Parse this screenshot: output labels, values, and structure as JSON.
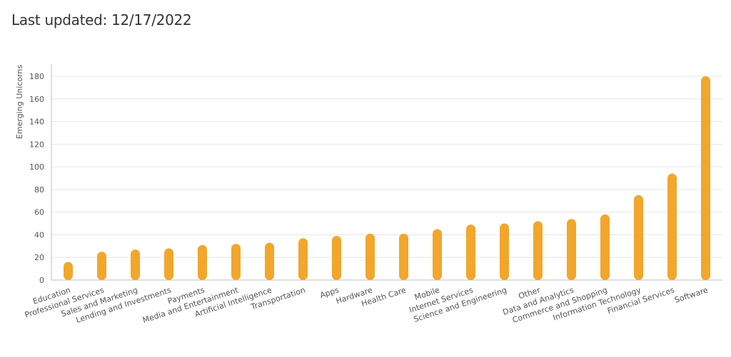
{
  "header": {
    "last_updated": "Last updated: 12/17/2022"
  },
  "colors": {
    "bar": "#F2A62B",
    "grid": "#e6e6e6",
    "axis": "#bfbfbf",
    "text": "#555555"
  },
  "chart_data": {
    "type": "bar",
    "title": "",
    "xlabel": "",
    "ylabel": "Emerging Unicorns",
    "ylim": [
      0,
      180
    ],
    "yticks": [
      0,
      20,
      40,
      60,
      80,
      100,
      120,
      140,
      160,
      180
    ],
    "grid": true,
    "categories": [
      "Education",
      "Professional Services",
      "Sales and Marketing",
      "Lending and Investments",
      "Payments",
      "Media and Entertainment",
      "Artificial Intelligence",
      "Transportation",
      "Apps",
      "Hardware",
      "Health Care",
      "Mobile",
      "Internet Services",
      "Science and Engineering",
      "Other",
      "Data and Analytics",
      "Commerce and Shopping",
      "Information Technology",
      "Financial Services",
      "Software"
    ],
    "values": [
      16,
      25,
      27,
      28,
      31,
      32,
      33,
      37,
      39,
      41,
      41,
      45,
      49,
      50,
      52,
      54,
      58,
      75,
      94,
      180
    ]
  }
}
